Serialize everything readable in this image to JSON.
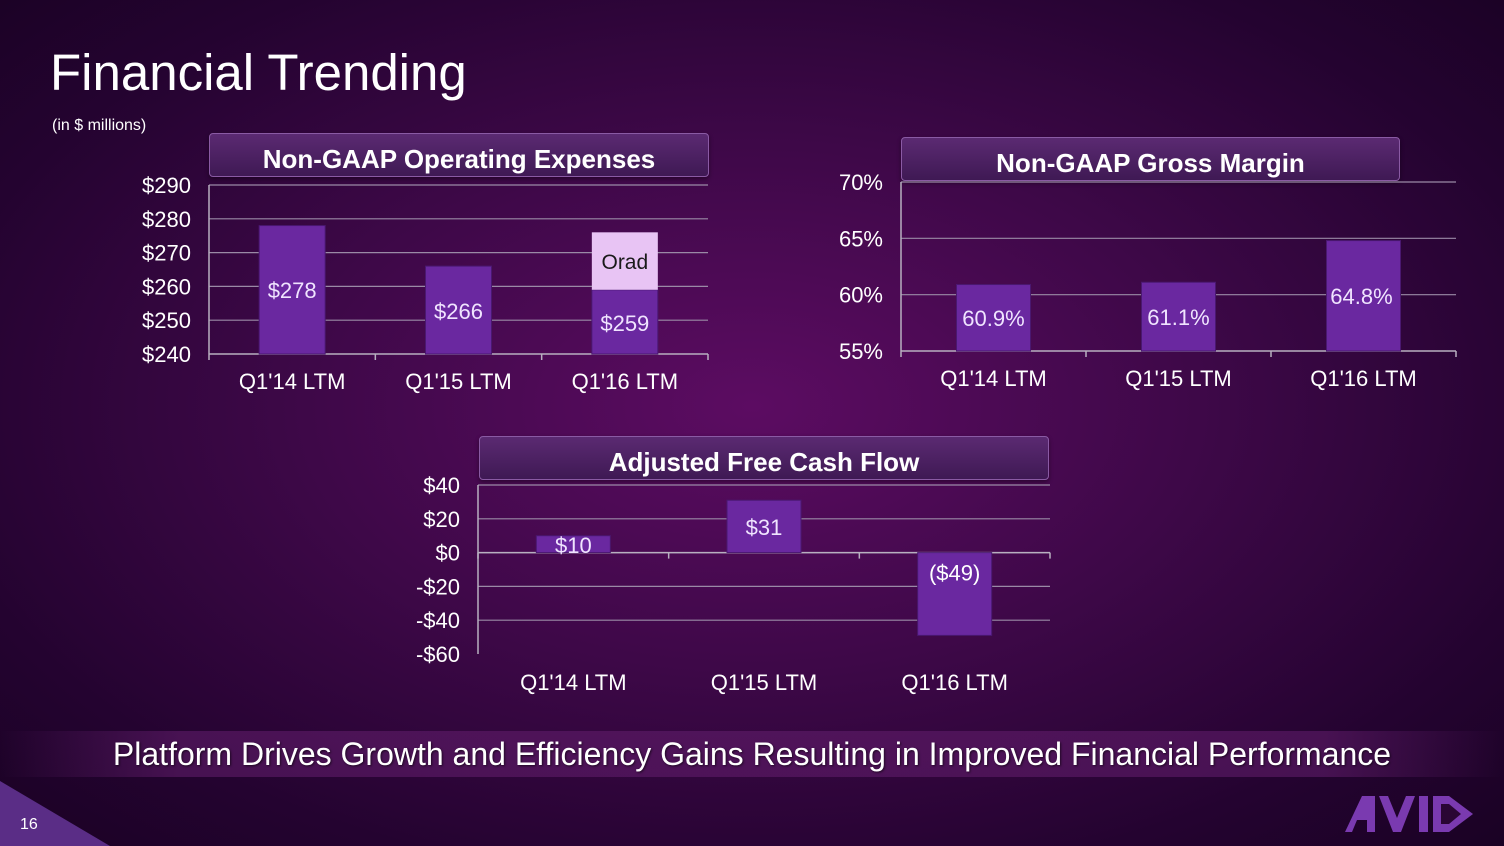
{
  "page": {
    "title": "Financial Trending",
    "subtitle": "(in $ millions)",
    "banner": "Platform Drives Growth and Efficiency Gains Resulting in Improved Financial Performance",
    "page_number": "16",
    "logo_icon": "avid-logo-icon"
  },
  "colors": {
    "bar": "#6a28a0",
    "bar_stacked": "#e8c4f4",
    "grid": "#9a8aa6",
    "axis": "#b8b0c0"
  },
  "chart_data": [
    {
      "id": "opex",
      "type": "bar",
      "title": "Non-GAAP Operating Expenses",
      "categories": [
        "Q1'14 LTM",
        "Q1'15 LTM",
        "Q1'16 LTM"
      ],
      "series": [
        {
          "values": [
            278,
            266,
            259
          ],
          "labels": [
            "$278",
            "$266",
            "$259"
          ]
        },
        {
          "name": "Orad",
          "values": [
            0,
            0,
            17
          ],
          "labels": [
            "",
            "",
            "Orad"
          ]
        }
      ],
      "ylim": [
        240,
        290
      ],
      "yticks": [
        240,
        250,
        260,
        270,
        280,
        290
      ],
      "ytick_labels": [
        "$240",
        "$250",
        "$260",
        "$270",
        "$280",
        "$290"
      ],
      "grid": true
    },
    {
      "id": "margin",
      "type": "bar",
      "title": "Non-GAAP Gross Margin",
      "categories": [
        "Q1'14 LTM",
        "Q1'15 LTM",
        "Q1'16 LTM"
      ],
      "series": [
        {
          "values": [
            60.9,
            61.1,
            64.8
          ],
          "labels": [
            "60.9%",
            "61.1%",
            "64.8%"
          ]
        }
      ],
      "ylim": [
        55,
        70
      ],
      "yticks": [
        55,
        60,
        65,
        70
      ],
      "ytick_labels": [
        "55%",
        "60%",
        "65%",
        "70%"
      ],
      "grid": true
    },
    {
      "id": "fcf",
      "type": "bar",
      "title": "Adjusted Free Cash Flow",
      "categories": [
        "Q1'14 LTM",
        "Q1'15 LTM",
        "Q1'16 LTM"
      ],
      "series": [
        {
          "values": [
            10,
            31,
            -49
          ],
          "labels": [
            "$10",
            "$31",
            "($49)"
          ]
        }
      ],
      "ylim": [
        -60,
        40
      ],
      "yticks": [
        -60,
        -40,
        -20,
        0,
        20,
        40
      ],
      "ytick_labels": [
        "-$60",
        "-$40",
        "-$20",
        "$0",
        "$20",
        "$40"
      ],
      "grid": true
    }
  ]
}
